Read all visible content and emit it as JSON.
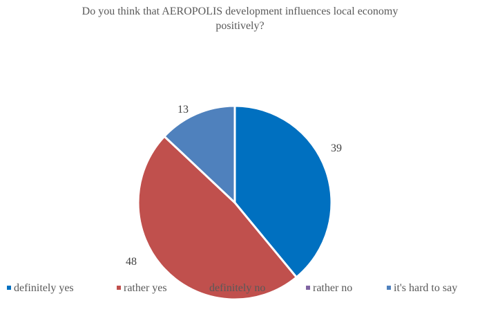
{
  "chart_data": {
    "type": "pie",
    "title_lines": [
      "Do you think that AEROPOLIS development influences local economy",
      "positively?"
    ],
    "categories": [
      "definitely yes",
      "rather yes",
      "definitely no",
      "rather no",
      "it's hard to say"
    ],
    "values": [
      39,
      0,
      48,
      0,
      13
    ],
    "colors": [
      "#0070C0",
      "#C0504D",
      "#C0504D",
      "#8064A2",
      "#4F81BD"
    ],
    "data_labels": [
      "39",
      "",
      "48",
      "",
      "13"
    ],
    "legend_position": "bottom",
    "start_angle_deg": 0,
    "direction": "clockwise"
  }
}
